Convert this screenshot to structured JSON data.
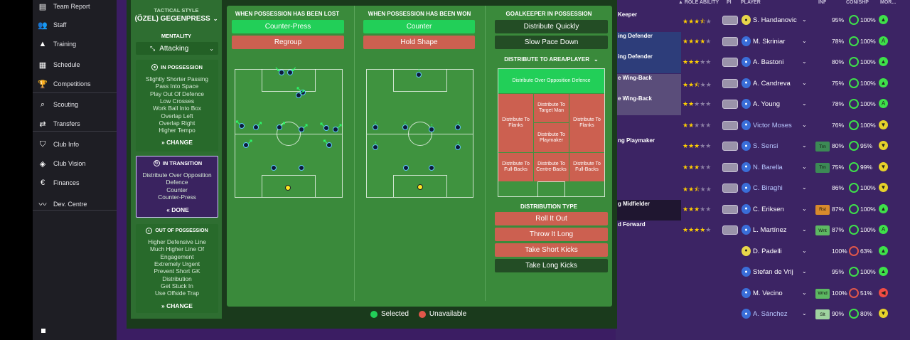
{
  "nav": {
    "items": [
      {
        "label": "Team Report",
        "icon": "clipboard-icon"
      },
      {
        "label": "Staff",
        "icon": "staff-icon"
      },
      {
        "label": "Training",
        "icon": "cone-icon"
      },
      {
        "label": "Schedule",
        "icon": "calendar-icon"
      },
      {
        "label": "Competitions",
        "icon": "trophy-icon"
      },
      {
        "label": "Scouting",
        "icon": "magnifier-icon"
      },
      {
        "label": "Transfers",
        "icon": "transfer-icon"
      },
      {
        "label": "Club Info",
        "icon": "shield-icon"
      },
      {
        "label": "Club Vision",
        "icon": "vision-icon"
      },
      {
        "label": "Finances",
        "icon": "money-icon"
      },
      {
        "label": "Dev. Centre",
        "icon": "chart-line-icon"
      }
    ]
  },
  "tactics": {
    "style_label": "TACTICAL STYLE",
    "style_value": "(ÖZEL) GEGENPRESS",
    "mentality_label": "MENTALITY",
    "mentality_value": "Attacking",
    "in_possession": {
      "title": "IN POSSESSION",
      "items": [
        "Slightly Shorter Passing",
        "Pass Into Space",
        "Play Out Of Defence",
        "Low Crosses",
        "Work Ball Into Box",
        "Overlap Left",
        "Overlap Right",
        "Higher Tempo"
      ],
      "action": "CHANGE"
    },
    "in_transition": {
      "title": "IN TRANSITION",
      "items": [
        "Distribute Over Opposition",
        "Defence",
        "Counter",
        "Counter-Press"
      ],
      "action": "DONE"
    },
    "out_of_possession": {
      "title": "OUT OF POSSESSION",
      "items": [
        "Higher Defensive Line",
        "Much Higher Line Of",
        "Engagement",
        "Extremely Urgent",
        "Prevent Short GK",
        "Distribution",
        "Get Stuck In",
        "Use Offside Trap"
      ],
      "action": "CHANGE"
    }
  },
  "transition": {
    "lost": {
      "title": "WHEN POSSESSION HAS BEEN LOST",
      "opt1": "Counter-Press",
      "opt2": "Regroup"
    },
    "won": {
      "title": "WHEN POSSESSION HAS BEEN WON",
      "opt1": "Counter",
      "opt2": "Hold Shape"
    },
    "gk": {
      "title": "GOALKEEPER IN POSSESSION",
      "opt1": "Distribute Quickly",
      "opt2": "Slow Pace Down",
      "area_title": "DISTRIBUTE TO AREA/PLAYER",
      "zones": {
        "top": "Distribute Over Opposition Defence",
        "target": "Distribute To Target Man",
        "flanks_l": "Distribute To Flanks",
        "flanks_r": "Distribute To Flanks",
        "playmaker": "Distribute To Playmaker",
        "fb_l": "Distribute To Full-Backs",
        "cb": "Distribute To Centre-Backs",
        "fb_r": "Distribute To Full-Backs"
      },
      "type_title": "DISTRIBUTION TYPE",
      "types": [
        "Roll It Out",
        "Throw It Long",
        "Take Short Kicks",
        "Take Long Kicks"
      ]
    },
    "legend": {
      "selected": "Selected",
      "unavailable": "Unavailable"
    }
  },
  "table": {
    "headers": {
      "role_ability": "▲ ROLE ABILITY",
      "pi": "PI",
      "player": "PLAYER",
      "inf": "INF",
      "conshp": "CON/SHP",
      "mor": "MOR..."
    },
    "rows": [
      {
        "role": "Keeper",
        "stars": 3.5,
        "name": "S. Handanovic",
        "pos": "GK",
        "inf": "",
        "con": "95%",
        "shp": "100%",
        "mor": "up"
      },
      {
        "role": "ing Defender",
        "stars": 4,
        "name": "M. Skriniar",
        "pos": "D",
        "inf": "",
        "con": "78%",
        "shp": "100%",
        "mor": "A"
      },
      {
        "role": "ing Defender",
        "stars": 3,
        "name": "A. Bastoni",
        "pos": "D",
        "inf": "",
        "con": "80%",
        "shp": "100%",
        "mor": "up"
      },
      {
        "role": "e Wing-Back",
        "stars": 2.5,
        "name": "A. Candreva",
        "pos": "D",
        "inf": "",
        "con": "75%",
        "shp": "100%",
        "mor": "up"
      },
      {
        "role": "e Wing-Back",
        "stars": 2,
        "name": "A. Young",
        "pos": "D",
        "inf": "",
        "con": "78%",
        "shp": "100%",
        "mor": "A"
      },
      {
        "role": "",
        "stars": 2,
        "name": "Victor Moses",
        "pos": "D",
        "inf": "",
        "con": "76%",
        "shp": "100%",
        "mor": "down"
      },
      {
        "role": "ng Playmaker",
        "stars": 3,
        "name": "S. Sensi",
        "pos": "M",
        "inf": "Trn",
        "con": "80%",
        "shp": "95%",
        "mor": "down"
      },
      {
        "role": "",
        "stars": 3,
        "name": "N. Barella",
        "pos": "M",
        "inf": "Trn",
        "con": "75%",
        "shp": "99%",
        "mor": "down"
      },
      {
        "role": "",
        "stars": 2.5,
        "name": "C. Biraghi",
        "pos": "D",
        "inf": "",
        "con": "86%",
        "shp": "100%",
        "mor": "down"
      },
      {
        "role": "g Midfielder",
        "stars": 3,
        "name": "C. Eriksen",
        "pos": "M",
        "inf": "Rst",
        "con": "87%",
        "shp": "100%",
        "mor": "up"
      },
      {
        "role": "d Forward",
        "stars": 4,
        "name": "L. Martínez",
        "pos": "F",
        "inf": "Wnt",
        "con": "87%",
        "shp": "100%",
        "mor": "A"
      },
      {
        "role": "",
        "stars": 0,
        "name": "D. Padelli",
        "pos": "GK",
        "inf": "",
        "con": "100%",
        "shp": "63%",
        "mor": "up"
      },
      {
        "role": "",
        "stars": 0,
        "name": "Stefan de Vrij",
        "pos": "D",
        "inf": "",
        "con": "95%",
        "shp": "100%",
        "mor": "up"
      },
      {
        "role": "",
        "stars": 0,
        "name": "M. Vecino",
        "pos": "M",
        "inf": "Wnd",
        "con": "100%",
        "shp": "51%",
        "mor": "left"
      },
      {
        "role": "",
        "stars": 0,
        "name": "A. Sánchez",
        "pos": "F",
        "inf": "Slt",
        "con": "90%",
        "shp": "80%",
        "mor": "down"
      }
    ]
  },
  "colors": {
    "selected": "#22cf58",
    "unavailable": "#cc6050",
    "dark": "#234d25",
    "panel": "#3a8a3b"
  }
}
